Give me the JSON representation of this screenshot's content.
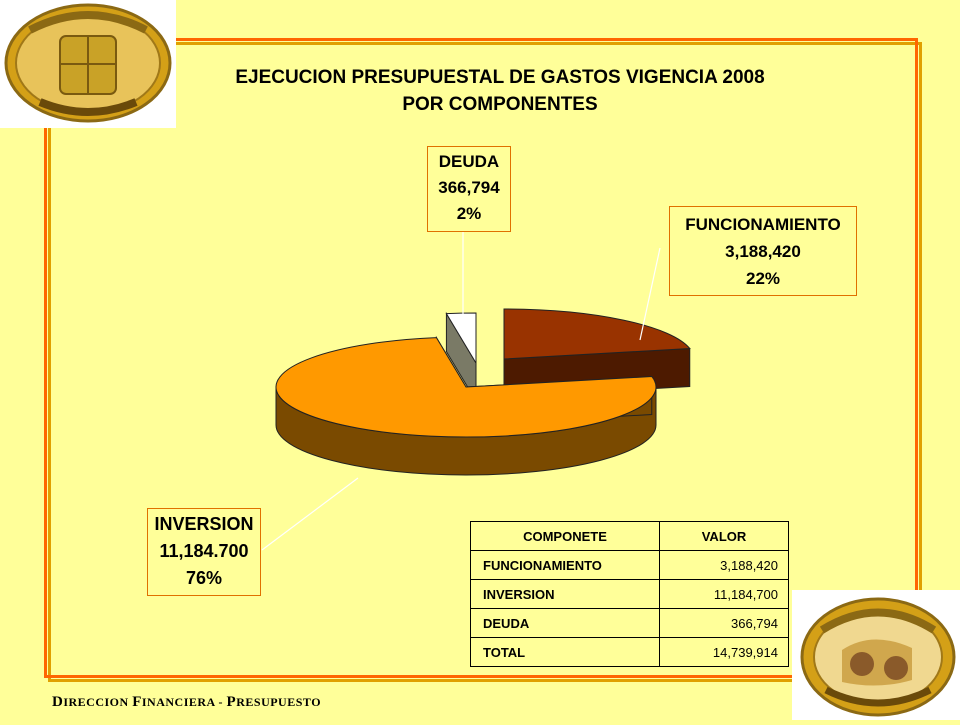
{
  "title_line1": "EJECUCION PRESUPUESTAL DE GASTOS VIGENCIA 2008",
  "title_line2": "POR COMPONENTES",
  "logos": {
    "top_left": "San Martín crest logo",
    "bottom_right": "San Martín seal logo"
  },
  "footer": {
    "d": "D",
    "part1": "IRECCION ",
    "f": "F",
    "part2": "INANCIERA - ",
    "p": "P",
    "part3": "RESUPUESTO"
  },
  "colors": {
    "background": "#FFFF99",
    "frame": "#FF6600",
    "funcionamiento": "#993300",
    "inversion": "#FF9900",
    "deuda": "#FFFFFF"
  },
  "chart_data": {
    "type": "pie",
    "title": "EJECUCION PRESUPUESTAL DE GASTOS VIGENCIA 2008 POR COMPONENTES",
    "slices": [
      {
        "label": "FUNCIONAMIENTO",
        "value_label": "3,188,420",
        "value": 3188420,
        "percent_label": "22%",
        "percent": 22
      },
      {
        "label": "INVERSION",
        "value_label": "11,184.700",
        "value": 11184700,
        "percent_label": "76%",
        "percent": 76
      },
      {
        "label": "DEUDA",
        "value_label": "366,794",
        "value": 366794,
        "percent_label": "2%",
        "percent": 2
      }
    ]
  },
  "table": {
    "headers": [
      "COMPONETE",
      "VALOR"
    ],
    "rows": [
      {
        "name": "FUNCIONAMIENTO",
        "value": "3,188,420"
      },
      {
        "name": "INVERSION",
        "value": "11,184,700"
      },
      {
        "name": "DEUDA",
        "value": "366,794"
      },
      {
        "name": "TOTAL",
        "value": "14,739,914"
      }
    ]
  }
}
